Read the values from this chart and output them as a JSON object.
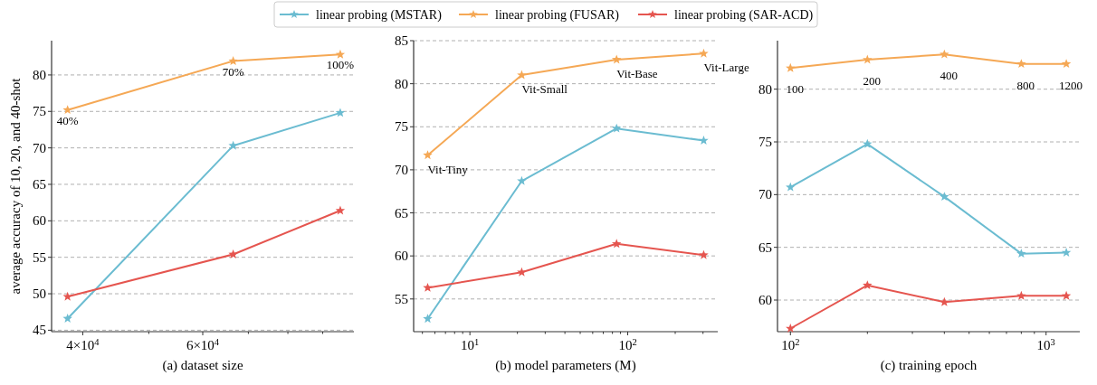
{
  "chart_data": [
    {
      "type": "line",
      "xlabel": "(a) dataset size",
      "ylabel": "average accuracy of 10, 20, and 40-shot",
      "log": "x",
      "grid": "y",
      "legend": "top",
      "marker": "star",
      "line_style": "solid",
      "x": [
        38000,
        66500,
        95500
      ],
      "xlim": [
        36000,
        100000
      ],
      "xticks": [
        {
          "value": 40000,
          "label": "4×10$^{4}$"
        },
        {
          "value": 50000,
          "label": null
        },
        {
          "value": 60000,
          "label": "6×10$^{4}$"
        },
        {
          "value": 70000,
          "label": null
        },
        {
          "value": 80000,
          "label": null
        },
        {
          "value": 90000,
          "label": null
        }
      ],
      "ylim": [
        44.8,
        84.7
      ],
      "yticks": [
        45,
        50,
        55,
        60,
        65,
        70,
        75,
        80
      ],
      "series": [
        {
          "name": "linear probing (MSTAR)",
          "color": "#6bbcd1",
          "values": [
            46.6,
            70.3,
            74.8
          ]
        },
        {
          "name": "linear probing (FUSAR)",
          "color": "#f5a855",
          "values": [
            75.2,
            81.9,
            82.8
          ]
        },
        {
          "name": "linear probing (SAR-ACD)",
          "color": "#e5554f",
          "values": [
            49.6,
            55.4,
            61.4
          ]
        }
      ],
      "annotations": [
        {
          "text": "40%",
          "x": 38000,
          "y": 75.2
        },
        {
          "text": "70%",
          "x": 66500,
          "y": 81.9
        },
        {
          "text": "100%",
          "x": 95500,
          "y": 82.8
        }
      ]
    },
    {
      "type": "line",
      "xlabel": "(b) model parameters (M)",
      "log": "x",
      "grid": "y",
      "legend": "top",
      "marker": "star",
      "line_style": "solid",
      "x": [
        5.4,
        21.3,
        85,
        303
      ],
      "xlim": [
        4.4,
        372
      ],
      "xticks": [
        {
          "value": 5,
          "label": null
        },
        {
          "value": 6,
          "label": null
        },
        {
          "value": 7,
          "label": null
        },
        {
          "value": 8,
          "label": null
        },
        {
          "value": 9,
          "label": null
        },
        {
          "value": 10,
          "label": "10$^{1}$"
        },
        {
          "value": 20,
          "label": null
        },
        {
          "value": 30,
          "label": null
        },
        {
          "value": 40,
          "label": null
        },
        {
          "value": 50,
          "label": null
        },
        {
          "value": 60,
          "label": null
        },
        {
          "value": 70,
          "label": null
        },
        {
          "value": 80,
          "label": null
        },
        {
          "value": 90,
          "label": null
        },
        {
          "value": 100,
          "label": "10$^{2}$"
        },
        {
          "value": 200,
          "label": null
        },
        {
          "value": 300,
          "label": null
        }
      ],
      "ylim": [
        51.2,
        85
      ],
      "yticks": [
        55,
        60,
        65,
        70,
        75,
        80,
        85
      ],
      "series": [
        {
          "name": "linear probing (MSTAR)",
          "color": "#6bbcd1",
          "values": [
            52.7,
            68.7,
            74.8,
            73.4
          ]
        },
        {
          "name": "linear probing (FUSAR)",
          "color": "#f5a855",
          "values": [
            71.7,
            81.0,
            82.8,
            83.5
          ]
        },
        {
          "name": "linear probing (SAR-ACD)",
          "color": "#e5554f",
          "values": [
            56.3,
            58.1,
            61.4,
            60.1
          ]
        }
      ],
      "annotations": [
        {
          "text": "Vit-Tiny",
          "x": 5.4,
          "y": 71.7
        },
        {
          "text": "Vit-Small",
          "x": 21.3,
          "y": 81.0
        },
        {
          "text": "Vit-Base",
          "x": 85,
          "y": 82.8
        },
        {
          "text": "Vit-Large",
          "x": 303,
          "y": 83.5
        }
      ]
    },
    {
      "type": "line",
      "xlabel": "(c) training epoch",
      "log": "x",
      "grid": "y",
      "legend": "top",
      "marker": "star",
      "line_style": "solid",
      "x": [
        100,
        200,
        400,
        800,
        1200
      ],
      "xlim": [
        89,
        1355
      ],
      "xticks": [
        {
          "value": 100,
          "label": "10$^{2}$"
        },
        {
          "value": 200,
          "label": null
        },
        {
          "value": 300,
          "label": null
        },
        {
          "value": 400,
          "label": null
        },
        {
          "value": 500,
          "label": null
        },
        {
          "value": 600,
          "label": null
        },
        {
          "value": 700,
          "label": null
        },
        {
          "value": 800,
          "label": null
        },
        {
          "value": 900,
          "label": null
        },
        {
          "value": 1000,
          "label": "10$^{3}$"
        }
      ],
      "ylim": [
        57.0,
        84.6
      ],
      "yticks": [
        60,
        65,
        70,
        75,
        80
      ],
      "series": [
        {
          "name": "linear probing (MSTAR)",
          "color": "#6bbcd1",
          "values": [
            70.7,
            74.8,
            69.8,
            64.4,
            64.5
          ]
        },
        {
          "name": "linear probing (FUSAR)",
          "color": "#f5a855",
          "values": [
            82.0,
            82.8,
            83.3,
            82.4,
            82.4
          ]
        },
        {
          "name": "linear probing (SAR-ACD)",
          "color": "#e5554f",
          "values": [
            57.3,
            61.4,
            59.8,
            60.4,
            60.4
          ]
        }
      ],
      "annotations": [
        {
          "text": "100",
          "x": 100,
          "y": 82.0
        },
        {
          "text": "200",
          "x": 200,
          "y": 82.8
        },
        {
          "text": "400",
          "x": 400,
          "y": 83.3
        },
        {
          "text": "800",
          "x": 800,
          "y": 82.4
        },
        {
          "text": "1200",
          "x": 1200,
          "y": 82.4
        }
      ]
    }
  ]
}
